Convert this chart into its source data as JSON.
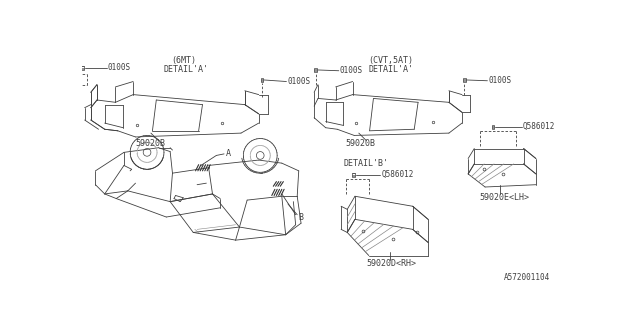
{
  "bg_color": "#ffffff",
  "line_color": "#404040",
  "text_color": "#404040",
  "diagram_id": "A572001104",
  "labels": {
    "part_d_label": "59020D<RH>",
    "part_e_label": "59020E<LH>",
    "part_b_detail": "DETAIL'B'",
    "part_a1_label": "59020B",
    "part_a2_label": "59020B",
    "detail_a1": "DETAIL'A'",
    "detail_a1_sub": "(6MT)",
    "detail_a2": "DETAIL'A'",
    "detail_a2_sub": "(CVT,5AT)",
    "bolt_q1": "Q586012",
    "bolt_q2": "Q586012",
    "bolt_01": "0100S",
    "bolt_02": "0100S",
    "bolt_03": "0100S",
    "bolt_04": "0100S",
    "label_A": "A",
    "label_B": "B"
  }
}
